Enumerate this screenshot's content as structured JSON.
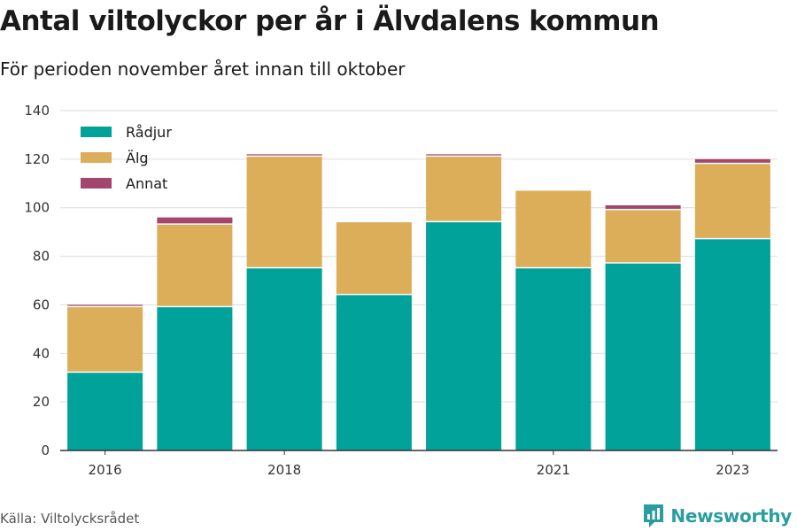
{
  "chart_data": {
    "type": "bar",
    "stacked": true,
    "title": "Antal viltolyckor per år i Älvdalens kommun",
    "subtitle": "För perioden november året innan till oktober",
    "categories": [
      "2016",
      "2017",
      "2018",
      "2019",
      "2020",
      "2021",
      "2022",
      "2023"
    ],
    "x_tick_labels": [
      "2016",
      "",
      "2018",
      "",
      "",
      "2021",
      "",
      "2023"
    ],
    "series": [
      {
        "name": "Rådjur",
        "color": "#00a29a",
        "values": [
          32,
          59,
          75,
          64,
          94,
          75,
          77,
          87
        ]
      },
      {
        "name": "Älg",
        "color": "#dcae5a",
        "values": [
          27,
          34,
          46,
          30,
          27,
          32,
          22,
          31
        ]
      },
      {
        "name": "Annat",
        "color": "#a3456c",
        "values": [
          1,
          3,
          1,
          0,
          1,
          0,
          2,
          2
        ]
      }
    ],
    "ylim": [
      0,
      140
    ],
    "yticks": [
      0,
      20,
      40,
      60,
      80,
      100,
      120,
      140
    ],
    "grid": true,
    "legend_position": "top-left"
  },
  "footer": {
    "source": "Källa: Viltolycksrådet",
    "brand": "Newsworthy",
    "brand_icon": "newsworthy-logo-icon"
  }
}
